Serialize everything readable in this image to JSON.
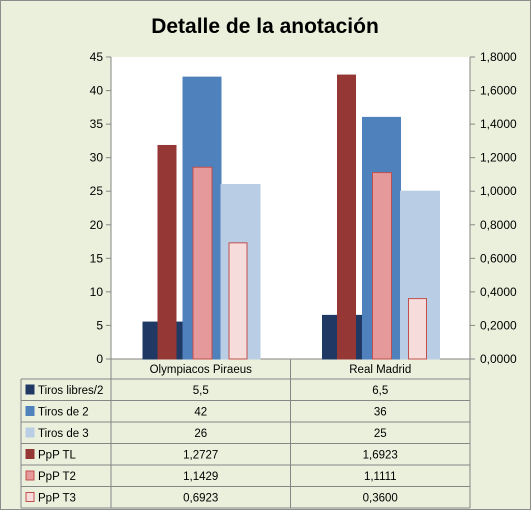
{
  "chart_data": {
    "type": "bar",
    "title": "Detalle de la anotación",
    "categories": [
      "Olympiacos Piraeus",
      "Real Madrid"
    ],
    "y_left": {
      "ylim": [
        0,
        45
      ],
      "ticks": [
        "0",
        "5",
        "10",
        "15",
        "20",
        "25",
        "30",
        "35",
        "40",
        "45"
      ]
    },
    "y_right": {
      "ylim": [
        0,
        1.8
      ],
      "ticks": [
        "0,0000",
        "0,2000",
        "0,4000",
        "0,6000",
        "0,8000",
        "1,0000",
        "1,2000",
        "1,4000",
        "1,6000",
        "1,8000"
      ]
    },
    "series": [
      {
        "name": "Tiros libres/2",
        "axis": "left",
        "values": [
          5.5,
          6.5
        ],
        "labels": [
          "5,5",
          "6,5"
        ],
        "color": "#1f3864",
        "border": "#1f3864"
      },
      {
        "name": "Tiros de 2",
        "axis": "left",
        "values": [
          42,
          36
        ],
        "labels": [
          "42",
          "36"
        ],
        "color": "#4f81bd",
        "border": "#4f81bd"
      },
      {
        "name": "Tiros de 3",
        "axis": "left",
        "values": [
          26,
          25
        ],
        "labels": [
          "26",
          "25"
        ],
        "color": "#b9cde5",
        "border": "#b9cde5"
      },
      {
        "name": "PpP TL",
        "axis": "right",
        "values": [
          1.2727,
          1.6923
        ],
        "labels": [
          "1,2727",
          "1,6923"
        ],
        "color": "#953735",
        "border": "#953735"
      },
      {
        "name": "PpP T2",
        "axis": "right",
        "values": [
          1.1429,
          1.1111
        ],
        "labels": [
          "1,1429",
          "1,1111"
        ],
        "color": "#e6999b",
        "border": "#c0504d"
      },
      {
        "name": "PpP T3",
        "axis": "right",
        "values": [
          0.6923,
          0.36
        ],
        "labels": [
          "0,6923",
          "0,3600"
        ],
        "color": "#f7dcdc",
        "border": "#c0504d"
      }
    ],
    "grid": false,
    "legend": "data-table"
  }
}
